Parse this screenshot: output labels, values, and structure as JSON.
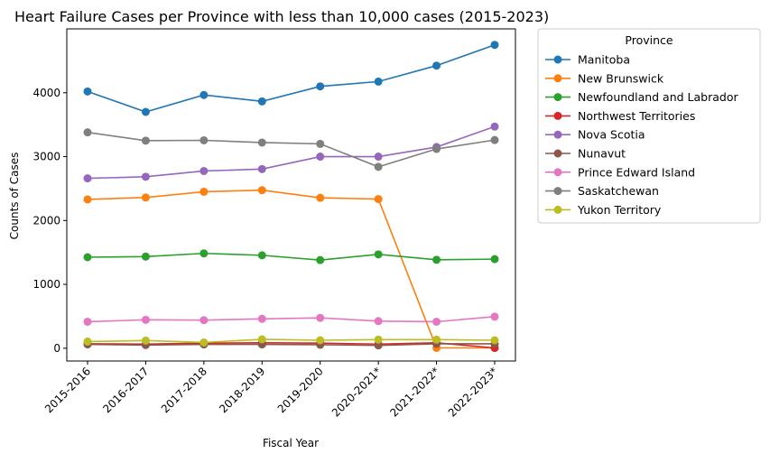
{
  "chart_data": {
    "type": "line",
    "title": "Heart Failure Cases per Province with less than 10,000 cases (2015-2023)",
    "xlabel": "Fiscal Year",
    "ylabel": "Counts of Cases",
    "ylim": [
      -200,
      5000
    ],
    "yticks": [
      0,
      1000,
      2000,
      3000,
      4000
    ],
    "grid": false,
    "legend_title": "Province",
    "legend_position": "outside-right-top",
    "categories": [
      "2015-2016",
      "2016-2017",
      "2017-2018",
      "2018-2019",
      "2019-2020",
      "2020-2021*",
      "2021-2022*",
      "2022-2023*"
    ],
    "series": [
      {
        "name": "Manitoba",
        "color": "#1f77b4",
        "values": [
          4020,
          3700,
          3965,
          3865,
          4100,
          4175,
          4425,
          4750
        ]
      },
      {
        "name": "New Brunswick",
        "color": "#ff7f0e",
        "values": [
          2330,
          2360,
          2450,
          2475,
          2355,
          2335,
          5,
          5
        ]
      },
      {
        "name": "Newfoundland and Labrador",
        "color": "#2ca02c",
        "values": [
          1425,
          1435,
          1485,
          1455,
          1380,
          1470,
          1385,
          1395
        ]
      },
      {
        "name": "Northwest Territories",
        "color": "#d62728",
        "values": [
          70,
          65,
          80,
          85,
          80,
          65,
          85,
          5
        ]
      },
      {
        "name": "Nova Scotia",
        "color": "#9467bd",
        "values": [
          2660,
          2685,
          2775,
          2805,
          3000,
          3000,
          3150,
          3470
        ]
      },
      {
        "name": "Nunavut",
        "color": "#8c564b",
        "values": [
          60,
          50,
          60,
          60,
          55,
          45,
          70,
          70
        ]
      },
      {
        "name": "Prince Edward Island",
        "color": "#e377c2",
        "values": [
          415,
          445,
          440,
          460,
          475,
          425,
          415,
          495
        ]
      },
      {
        "name": "Saskatchewan",
        "color": "#7f7f7f",
        "values": [
          3380,
          3250,
          3255,
          3220,
          3200,
          2840,
          3120,
          3260
        ]
      },
      {
        "name": "Yukon Territory",
        "color": "#bcbd22",
        "values": [
          105,
          120,
          90,
          140,
          125,
          135,
          135,
          125
        ]
      }
    ]
  }
}
